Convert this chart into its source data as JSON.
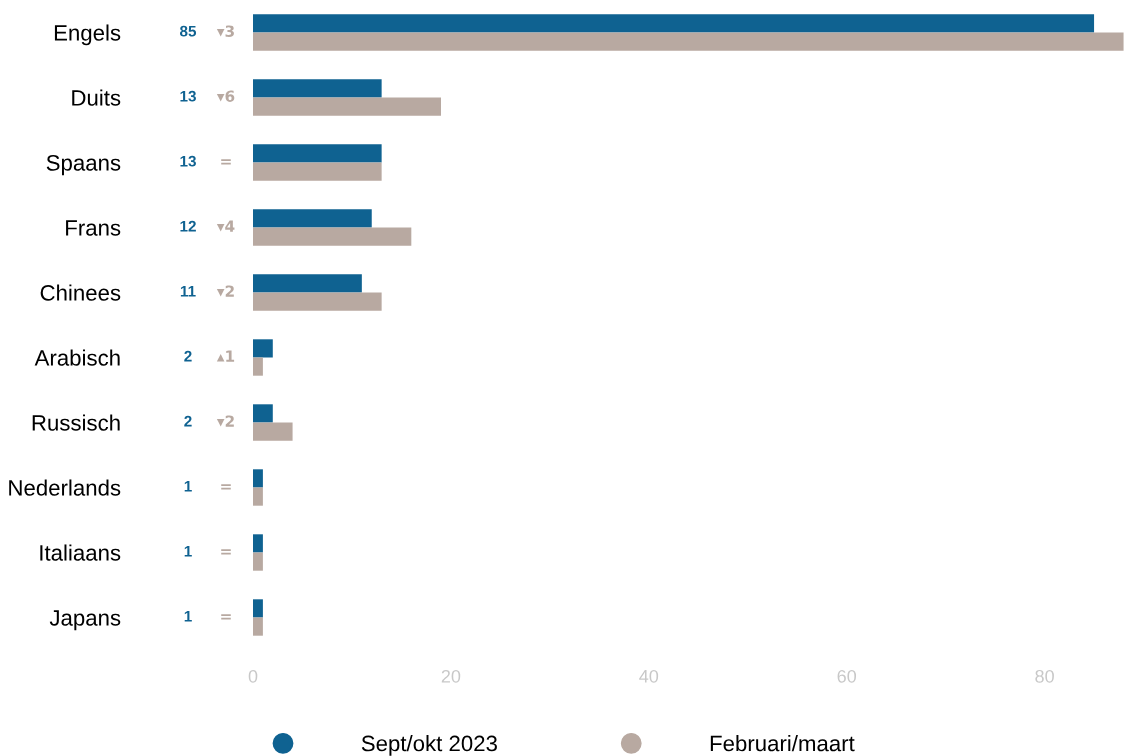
{
  "chart_data": {
    "type": "bar",
    "orientation": "horizontal",
    "categories": [
      "Engels",
      "Duits",
      "Spaans",
      "Frans",
      "Chinees",
      "Arabisch",
      "Russisch",
      "Nederlands",
      "Italiaans",
      "Japans"
    ],
    "series": [
      {
        "name": "Sept/okt 2023",
        "color": "#0f6291",
        "values": [
          85,
          13,
          13,
          12,
          11,
          2,
          2,
          1,
          1,
          1
        ],
        "value_labels": [
          "85",
          "13",
          "13",
          "12",
          "11",
          "2",
          "2",
          "1",
          "1",
          "1"
        ]
      },
      {
        "name": "Februari/maart",
        "color": "#b8a9a1",
        "values": [
          88,
          19,
          13,
          16,
          13,
          1,
          4,
          1,
          1,
          1
        ]
      }
    ],
    "annotations": [
      "▾3",
      "▾6",
      "=",
      "▾4",
      "▾2",
      "▴1",
      "▾2",
      "=",
      "=",
      "="
    ],
    "xlim": [
      0,
      88
    ],
    "xticks": [
      0,
      20,
      40,
      60,
      80
    ],
    "grid": false,
    "legend": "bottom"
  }
}
